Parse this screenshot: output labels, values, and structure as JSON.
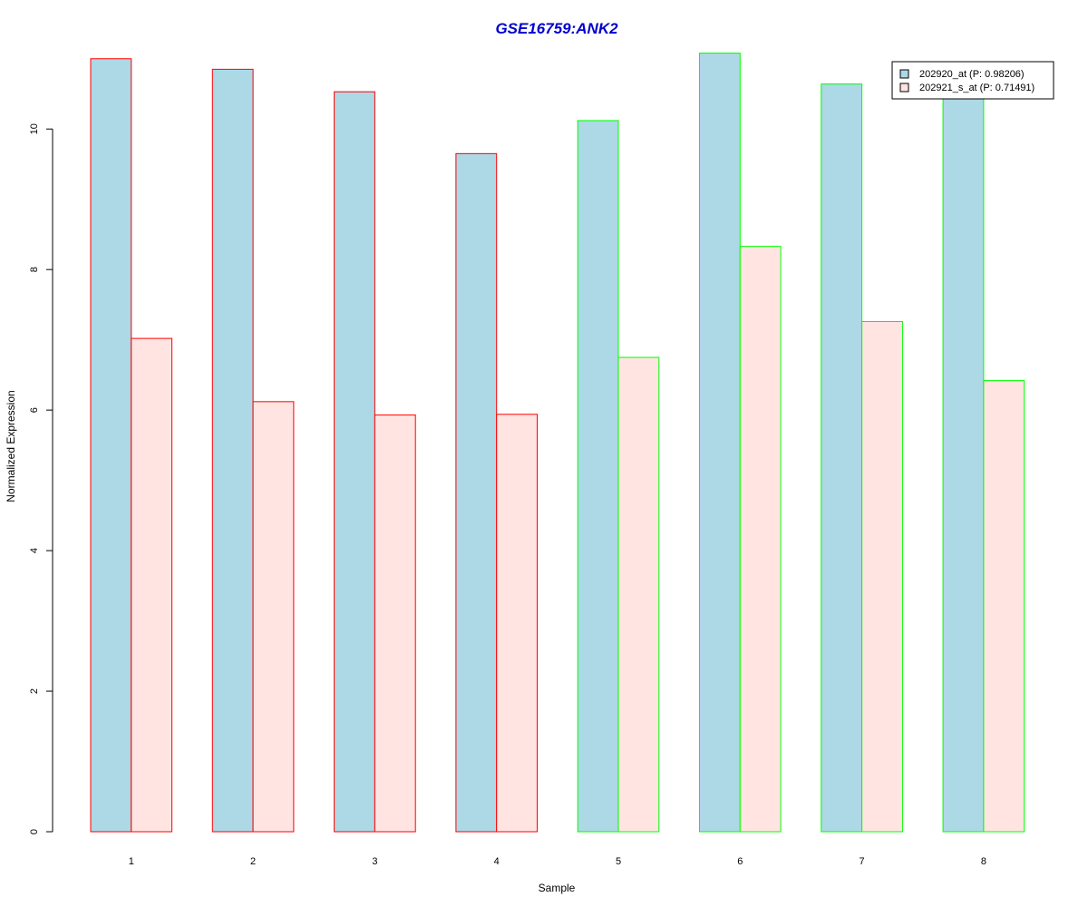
{
  "chart_data": {
    "type": "bar",
    "title": "GSE16759:ANK2",
    "xlabel": "Sample",
    "ylabel": "Normalized Expression",
    "categories": [
      "1",
      "2",
      "3",
      "4",
      "5",
      "6",
      "7",
      "8"
    ],
    "series": [
      {
        "name": "202920_at (P: 0.98206)",
        "fill": "#add8e6",
        "values": [
          11.0,
          10.85,
          10.53,
          9.65,
          10.12,
          11.08,
          10.64,
          10.5
        ]
      },
      {
        "name": "202921_s_at (P: 0.71491)",
        "fill": "#ffe4e1",
        "values": [
          7.02,
          6.12,
          5.93,
          5.94,
          6.75,
          8.33,
          7.26,
          6.42
        ]
      }
    ],
    "group_border_colors": [
      "#ff0000",
      "#ff0000",
      "#ff0000",
      "#ff0000",
      "#00ff00",
      "#00ff00",
      "#00ff00",
      "#00ff00"
    ],
    "ylim": [
      0,
      11.1
    ],
    "yticks": [
      0,
      2,
      4,
      6,
      8,
      10
    ],
    "legend_position": "top-right",
    "grid": false
  },
  "colors": {
    "title": "#0000cd",
    "axis": "#000000",
    "background": "#ffffff"
  }
}
